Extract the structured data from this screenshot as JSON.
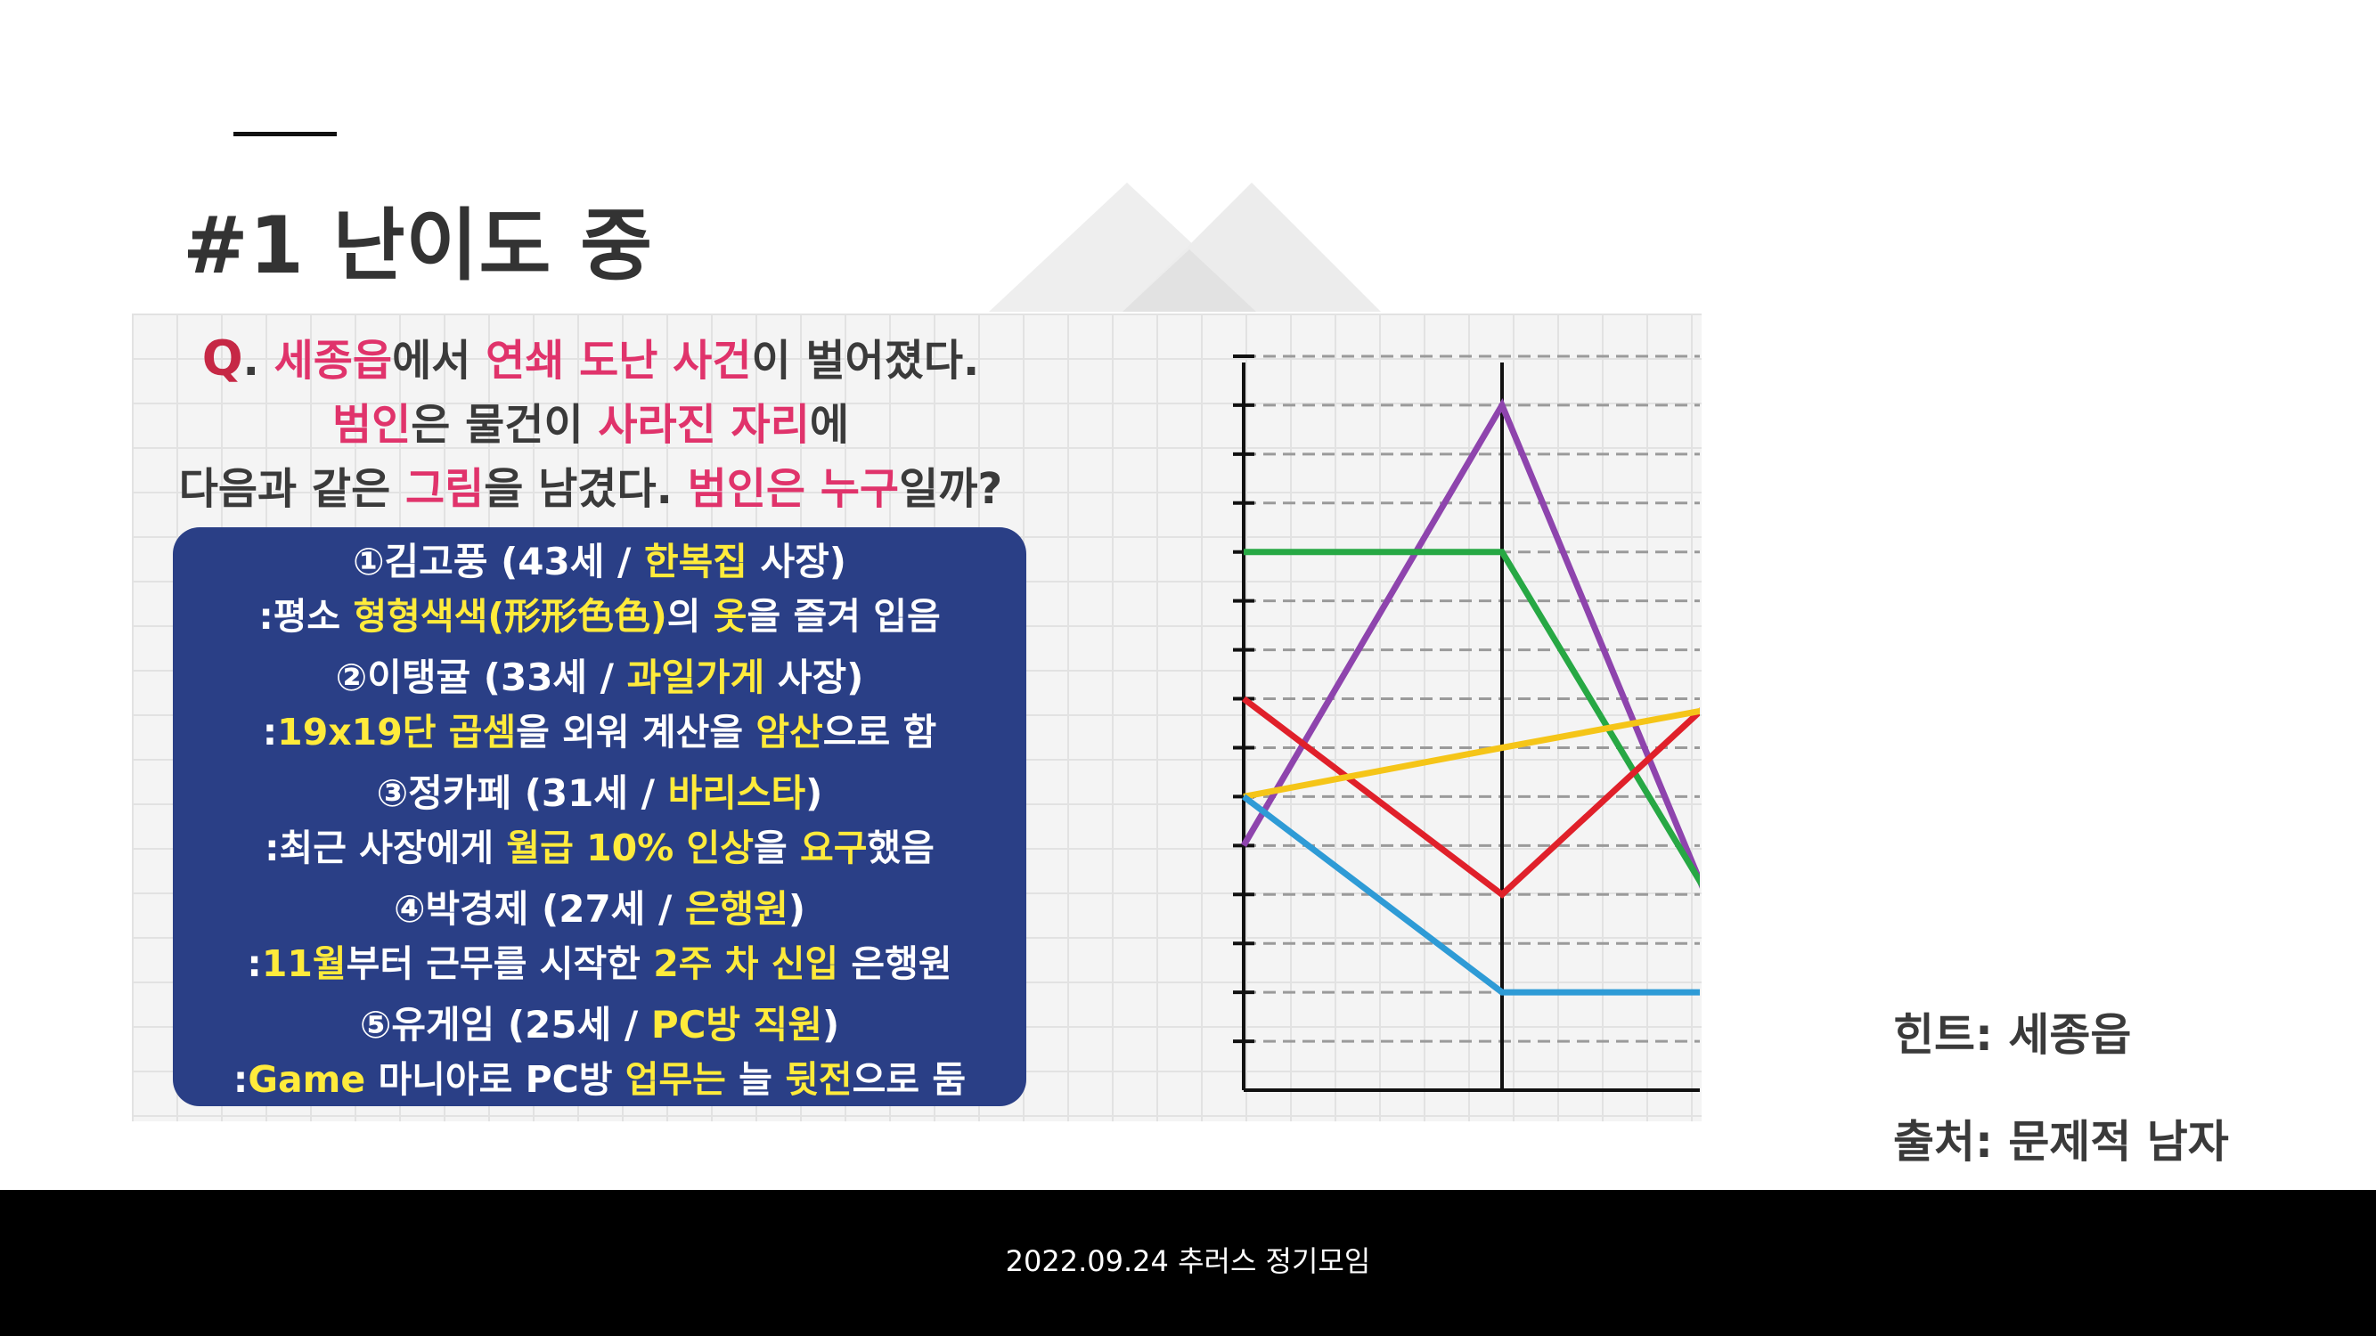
{
  "slide": {
    "title": "#1 난이도 중",
    "hint": "힌트: 세종읍",
    "source": "출처: 문제적 남자",
    "footer": "2022.09.24 추러스 정기모임"
  },
  "question": {
    "q_mark": "Q",
    "line1": [
      {
        "t": ". ",
        "c": "n"
      },
      {
        "t": "세종읍",
        "c": "p"
      },
      {
        "t": "에서 ",
        "c": "n"
      },
      {
        "t": "연쇄 도난 사건",
        "c": "p"
      },
      {
        "t": "이 벌어졌다.",
        "c": "n"
      }
    ],
    "line2": [
      {
        "t": "범인",
        "c": "p"
      },
      {
        "t": "은 물건이 ",
        "c": "n"
      },
      {
        "t": "사라진 자리",
        "c": "p"
      },
      {
        "t": "에",
        "c": "n"
      }
    ],
    "line3": [
      {
        "t": "다음과 같은 ",
        "c": "n"
      },
      {
        "t": "그림",
        "c": "p"
      },
      {
        "t": "을 남겼다. ",
        "c": "n"
      },
      {
        "t": "범인은 누구",
        "c": "p"
      },
      {
        "t": "일까?",
        "c": "n"
      }
    ]
  },
  "suspects": [
    {
      "name": [
        {
          "t": "①김고풍 (43세 / ",
          "c": "w"
        },
        {
          "t": "한복집",
          "c": "y"
        },
        {
          "t": " 사장)",
          "c": "w"
        }
      ],
      "desc": [
        {
          "t": ":평소 ",
          "c": "w"
        },
        {
          "t": "형형색색(形形色色)",
          "c": "y"
        },
        {
          "t": "의 ",
          "c": "w"
        },
        {
          "t": "옷",
          "c": "y"
        },
        {
          "t": "을 즐겨 입음",
          "c": "w"
        }
      ]
    },
    {
      "name": [
        {
          "t": "②이탱귤 (33세 / ",
          "c": "w"
        },
        {
          "t": "과일가게",
          "c": "y"
        },
        {
          "t": " 사장)",
          "c": "w"
        }
      ],
      "desc": [
        {
          "t": ":",
          "c": "w"
        },
        {
          "t": "19x19단 곱셈",
          "c": "y"
        },
        {
          "t": "을 외워 계산을 ",
          "c": "w"
        },
        {
          "t": "암산",
          "c": "y"
        },
        {
          "t": "으로 함",
          "c": "w"
        }
      ]
    },
    {
      "name": [
        {
          "t": "③정카페 (31세 / ",
          "c": "w"
        },
        {
          "t": "바리스타",
          "c": "y"
        },
        {
          "t": ")",
          "c": "w"
        }
      ],
      "desc": [
        {
          "t": ":최근 사장에게 ",
          "c": "w"
        },
        {
          "t": "월급 10% 인상",
          "c": "y"
        },
        {
          "t": "을 ",
          "c": "w"
        },
        {
          "t": "요구",
          "c": "y"
        },
        {
          "t": "했음",
          "c": "w"
        }
      ]
    },
    {
      "name": [
        {
          "t": "④박경제 (27세 / ",
          "c": "w"
        },
        {
          "t": "은행원",
          "c": "y"
        },
        {
          "t": ")",
          "c": "w"
        }
      ],
      "desc": [
        {
          "t": ":",
          "c": "w"
        },
        {
          "t": "11월",
          "c": "y"
        },
        {
          "t": "부터 근무를 시작한 ",
          "c": "w"
        },
        {
          "t": "2주 차 신입",
          "c": "y"
        },
        {
          "t": " 은행원",
          "c": "w"
        }
      ]
    },
    {
      "name": [
        {
          "t": "⑤유게임 (25세 / ",
          "c": "w"
        },
        {
          "t": "PC방 직원",
          "c": "y"
        },
        {
          "t": ")",
          "c": "w"
        }
      ],
      "desc": [
        {
          "t": ":",
          "c": "w"
        },
        {
          "t": "Game",
          "c": "y"
        },
        {
          "t": " 마니아로 PC방 ",
          "c": "w"
        },
        {
          "t": "업무는",
          "c": "y"
        },
        {
          "t": " 늘 ",
          "c": "w"
        },
        {
          "t": "뒷전",
          "c": "y"
        },
        {
          "t": "으로 둠",
          "c": "w"
        }
      ]
    }
  ],
  "colors": {
    "pink": "#e0336b",
    "yellow": "#ffeb3b",
    "panel": "#2a3f86",
    "footer_bg": "#000000"
  },
  "chart_data": {
    "type": "line",
    "x": [
      0,
      1,
      2
    ],
    "ylim": [
      0,
      15
    ],
    "grid": "horizontal dashed",
    "series": [
      {
        "color": "#8e44ad",
        "values": [
          5,
          14,
          1
        ]
      },
      {
        "color": "#27a844",
        "values": [
          11,
          11,
          2
        ]
      },
      {
        "color": "#e0202a",
        "values": [
          8,
          4,
          9
        ]
      },
      {
        "color": "#f5c518",
        "values": [
          6,
          7,
          8
        ]
      },
      {
        "color": "#2e9bd6",
        "values": [
          6,
          2,
          2
        ]
      }
    ]
  }
}
